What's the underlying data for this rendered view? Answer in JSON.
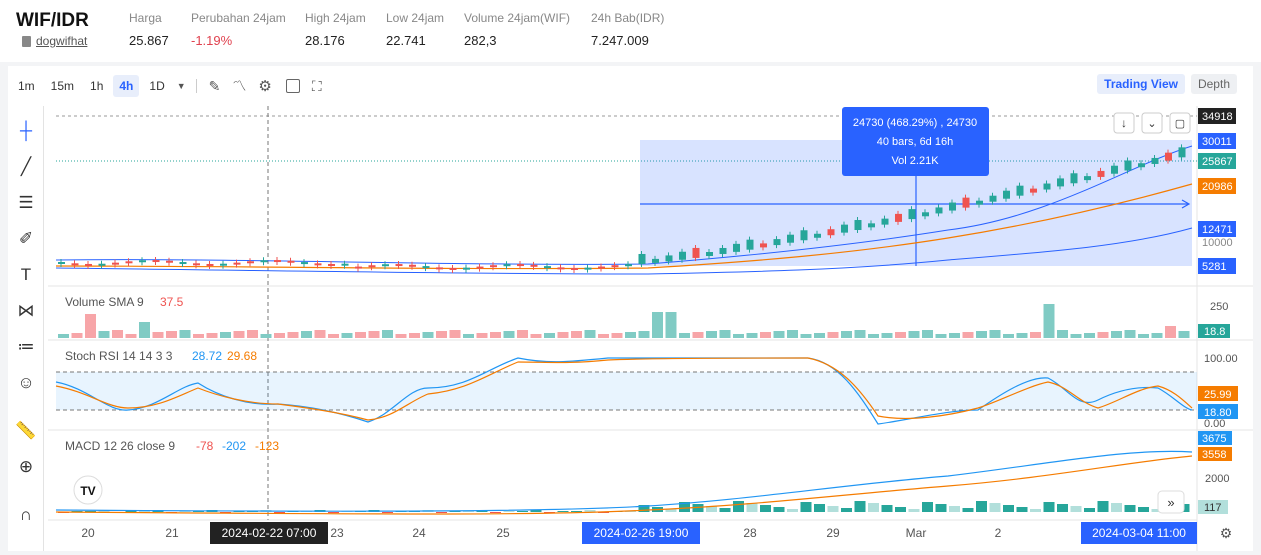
{
  "header": {
    "pair": "WIF/IDR",
    "pair_sub": "dogwifhat",
    "stats": [
      {
        "label": "Harga",
        "value": "25.867",
        "negative": false
      },
      {
        "label": "Perubahan 24jam",
        "value": "-1.19%",
        "negative": true
      },
      {
        "label": "High 24jam",
        "value": "28.176",
        "negative": false
      },
      {
        "label": "Low 24jam",
        "value": "22.741",
        "negative": false
      },
      {
        "label": "Volume 24jam(WIF)",
        "value": "282,3",
        "negative": false
      },
      {
        "label": "24h Bab(IDR)",
        "value": "7.247.009",
        "negative": false
      }
    ]
  },
  "toolbar": {
    "timeframes": [
      "1m",
      "15m",
      "1h",
      "4h",
      "1D"
    ],
    "active_timeframe": "4h",
    "tabs": [
      "Trading View",
      "Depth"
    ],
    "active_tab": "Trading View"
  },
  "tooltip": {
    "line1": "24730 (468.29%) , 24730",
    "line2": "40 bars, 6d 16h",
    "line3": "Vol 2.21K"
  },
  "price_axis": {
    "labels": [
      {
        "text": "34918",
        "bg": "#222222",
        "fg": "#ffffff"
      },
      {
        "text": "30011",
        "bg": "#2962ff",
        "fg": "#ffffff"
      },
      {
        "text": "25867",
        "bg": "#26a69a",
        "fg": "#ffffff"
      },
      {
        "text": "20986",
        "bg": "#f57c00",
        "fg": "#ffffff"
      },
      {
        "text": "12471",
        "bg": "#2962ff",
        "fg": "#ffffff"
      },
      {
        "text": "10000",
        "bg": "",
        "fg": "#888888"
      },
      {
        "text": "5281",
        "bg": "#2962ff",
        "fg": "#ffffff"
      }
    ]
  },
  "volume_pane": {
    "label": "Volume SMA 9",
    "value": "37.5",
    "axis": [
      "250"
    ],
    "last": "18.8"
  },
  "rsi_pane": {
    "label": "Stoch RSI 14 14 3 3",
    "k": "28.72",
    "d": "29.68",
    "axis": [
      "100.00",
      "0.00"
    ],
    "last_k": "25.99",
    "last_d": "18.80"
  },
  "macd_pane": {
    "label": "MACD 12 26 close 9",
    "v1": "-78",
    "v2": "-202",
    "v3": "-123",
    "axis": [
      "2000"
    ],
    "top1": "3675",
    "top2": "3558",
    "last": "117"
  },
  "time_axis": {
    "ticks": [
      "20",
      "21",
      "23",
      "24",
      "25",
      "28",
      "29",
      "Mar",
      "2"
    ],
    "cursor_label": "2024-02-22   07:00",
    "range_start": "2024-02-26   19:00",
    "range_end": "2024-03-04   11:00"
  },
  "colors": {
    "up": "#26a69a",
    "down": "#ef5350",
    "blue": "#2962ff",
    "orange": "#f57c00",
    "range_fill": "#dbe5fd"
  }
}
